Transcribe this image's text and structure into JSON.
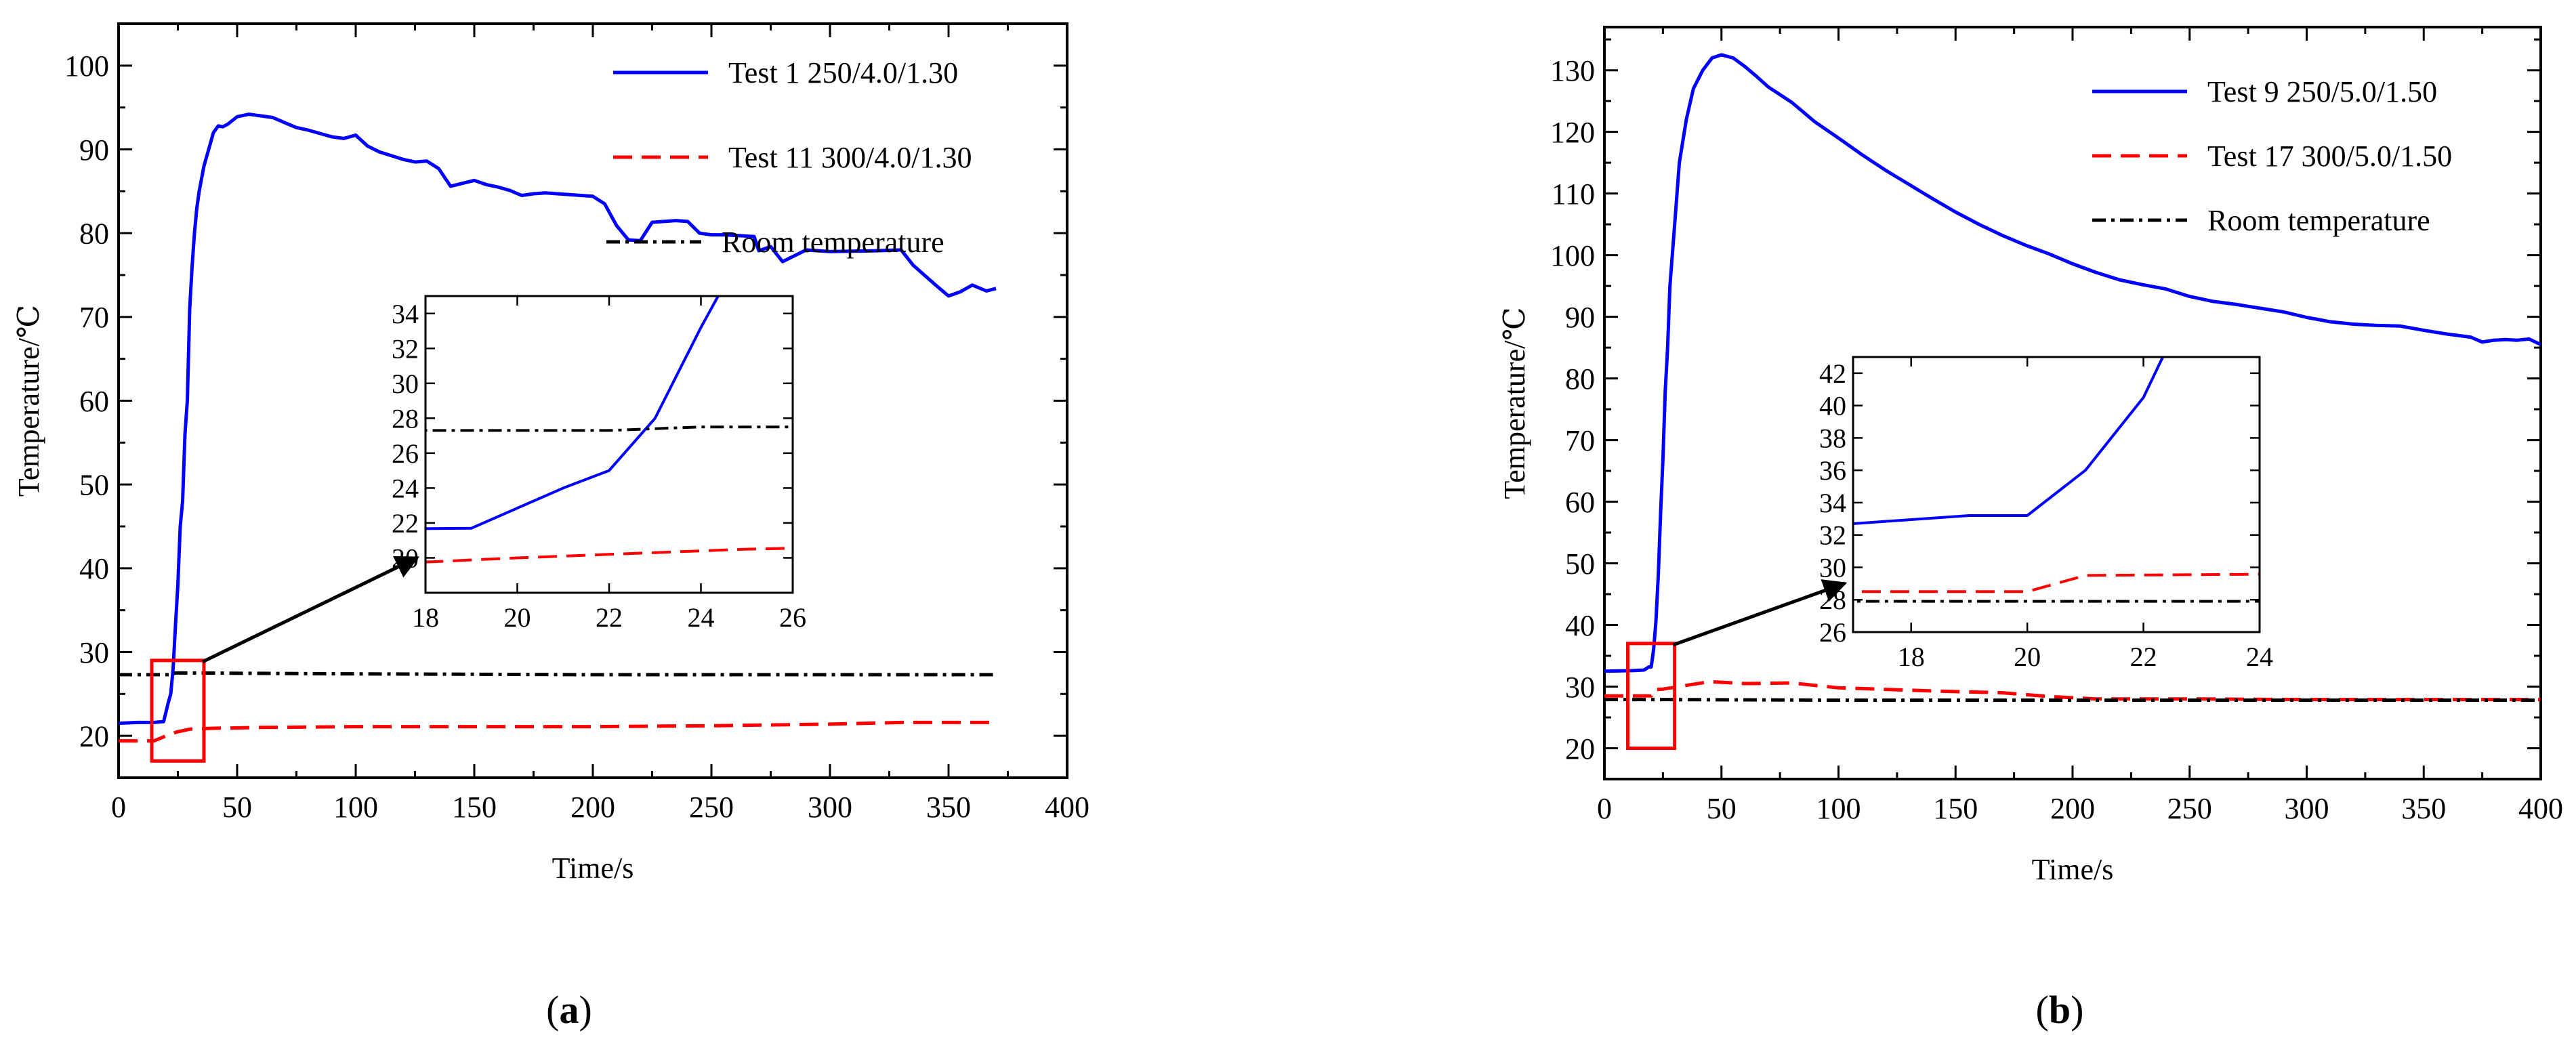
{
  "chart_data": [
    {
      "id": "a",
      "type": "line",
      "panel_label": "(a)",
      "xlabel": "Time/s",
      "ylabel": "Temperature/℃",
      "xlim": [
        0,
        400
      ],
      "ylim": [
        15,
        105
      ],
      "xticks": [
        0,
        50,
        100,
        150,
        200,
        250,
        300,
        350,
        400
      ],
      "yticks": [
        20,
        30,
        40,
        50,
        60,
        70,
        80,
        90,
        100
      ],
      "series": [
        {
          "name": "Test 1   250/4.0/1.30",
          "color": "#0000ff",
          "dash": "solid",
          "x": [
            0,
            8,
            15,
            19,
            21,
            22,
            23,
            24,
            25,
            26,
            27,
            28,
            29,
            30,
            31,
            32,
            33,
            34,
            36,
            38,
            40,
            42,
            44,
            46,
            50,
            55,
            60,
            65,
            70,
            75,
            80,
            90,
            95,
            100,
            105,
            110,
            120,
            125,
            130,
            135,
            140,
            150,
            155,
            160,
            165,
            170,
            175,
            180,
            190,
            200,
            205,
            210,
            215,
            220,
            225,
            235,
            240,
            245,
            250,
            255,
            262,
            268,
            270,
            275,
            280,
            290,
            300,
            320,
            330,
            335,
            345,
            350,
            355,
            360,
            366,
            370
          ],
          "y": [
            21.5,
            21.6,
            21.6,
            21.7,
            24,
            25,
            28,
            33.2,
            38,
            45,
            48,
            56,
            60,
            71,
            76,
            80,
            83,
            85,
            88,
            90,
            92,
            92.8,
            92.7,
            93,
            93.9,
            94.2,
            94,
            93.8,
            93.2,
            92.6,
            92.3,
            91.5,
            91.3,
            91.7,
            90.4,
            89.7,
            88.8,
            88.5,
            88.6,
            87.7,
            85.6,
            86.3,
            85.8,
            85.5,
            85.1,
            84.5,
            84.7,
            84.8,
            84.6,
            84.4,
            83.5,
            80.9,
            79.2,
            79.1,
            81.3,
            81.5,
            81.4,
            80,
            79.8,
            79.8,
            79.7,
            79.6,
            77.9,
            78.4,
            76.6,
            78,
            77.8,
            77.9,
            78,
            76.2,
            73.7,
            72.5,
            73,
            73.8,
            73.1,
            73.4
          ]
        },
        {
          "name": "Test 11 300/4.0/1.30",
          "color": "#ff0000",
          "dash": "dashed",
          "x": [
            0,
            15,
            20,
            23,
            25,
            27,
            30,
            40,
            60,
            100,
            150,
            200,
            250,
            300,
            330,
            370
          ],
          "y": [
            19.4,
            19.4,
            20,
            20.3,
            20.5,
            20.6,
            20.8,
            20.9,
            21,
            21.1,
            21.1,
            21.1,
            21.2,
            21.4,
            21.6,
            21.6
          ]
        },
        {
          "name": "Room temperature",
          "color": "#000000",
          "dash": "dashdot",
          "x": [
            0,
            20,
            21,
            22,
            24,
            30,
            100,
            200,
            300,
            370
          ],
          "y": [
            27.3,
            27.3,
            27.3,
            27.3,
            27.5,
            27.5,
            27.4,
            27.3,
            27.3,
            27.3
          ]
        }
      ],
      "zoom_box": {
        "xlim": [
          14,
          36
        ],
        "ylim": [
          17,
          29
        ]
      },
      "inset": {
        "xlim": [
          18,
          26
        ],
        "ylim": [
          18,
          35
        ],
        "xticks": [
          18,
          20,
          22,
          24,
          26
        ],
        "yticks": [
          20,
          22,
          24,
          26,
          28,
          30,
          32,
          34
        ]
      }
    },
    {
      "id": "b",
      "type": "line",
      "panel_label": "(b)",
      "xlabel": "Time/s",
      "ylabel": "Temperature/℃",
      "xlim": [
        0,
        400
      ],
      "ylim": [
        15,
        137
      ],
      "xticks": [
        0,
        50,
        100,
        150,
        200,
        250,
        300,
        350,
        400
      ],
      "yticks": [
        20,
        30,
        40,
        50,
        60,
        70,
        80,
        90,
        100,
        110,
        120,
        130
      ],
      "series": [
        {
          "name": "Test 9  250/5.0/1.50",
          "color": "#0000ff",
          "dash": "solid",
          "x": [
            0,
            12,
            17,
            19,
            20,
            21,
            22,
            23,
            24,
            25,
            26,
            27,
            28,
            30,
            32,
            35,
            38,
            42,
            46,
            50,
            55,
            60,
            65,
            70,
            80,
            90,
            100,
            110,
            120,
            130,
            140,
            150,
            160,
            170,
            180,
            190,
            200,
            210,
            220,
            230,
            240,
            250,
            260,
            270,
            275,
            280,
            290,
            300,
            310,
            320,
            330,
            340,
            350,
            360,
            370,
            375,
            380,
            385,
            390,
            395,
            400
          ],
          "y": [
            32.5,
            32.6,
            32.7,
            33.2,
            33.2,
            36,
            40.5,
            48,
            58,
            67,
            78,
            85,
            95,
            105,
            115,
            122,
            127,
            130,
            132,
            132.5,
            132,
            130.6,
            129,
            127.3,
            124.8,
            121.6,
            119,
            116.3,
            113.8,
            111.5,
            109.2,
            107,
            105,
            103.2,
            101.6,
            100.2,
            98.6,
            97.2,
            96,
            95.2,
            94.5,
            93.3,
            92.5,
            92,
            91.7,
            91.4,
            90.8,
            89.9,
            89.2,
            88.8,
            88.6,
            88.5,
            87.8,
            87.2,
            86.7,
            85.9,
            86.2,
            86.3,
            86.2,
            86.4,
            85.5
          ]
        },
        {
          "name": "Test 17 300/5.0/1.50",
          "color": "#ff0000",
          "dash": "dashed",
          "x": [
            0,
            10,
            15,
            20,
            21,
            25,
            35,
            45,
            60,
            80,
            100,
            140,
            170,
            190,
            210,
            250,
            300,
            350,
            400
          ],
          "y": [
            28.5,
            28.5,
            28.5,
            28.5,
            29.5,
            29.6,
            30.2,
            30.8,
            30.5,
            30.6,
            29.8,
            29.3,
            29,
            28.4,
            28,
            28,
            27.9,
            27.9,
            27.9
          ]
        },
        {
          "name": "Room temperature",
          "color": "#000000",
          "dash": "dashdot",
          "x": [
            0,
            10,
            20,
            24,
            100,
            200,
            300,
            400
          ],
          "y": [
            27.9,
            27.9,
            27.9,
            27.9,
            27.8,
            27.8,
            27.8,
            27.8
          ]
        }
      ],
      "zoom_box": {
        "xlim": [
          10,
          30
        ],
        "ylim": [
          20,
          37
        ]
      },
      "inset": {
        "xlim": [
          17,
          24
        ],
        "ylim": [
          26,
          43
        ],
        "xticks": [
          18,
          20,
          22,
          24
        ],
        "yticks": [
          26,
          28,
          30,
          32,
          34,
          36,
          38,
          40,
          42
        ]
      }
    }
  ]
}
